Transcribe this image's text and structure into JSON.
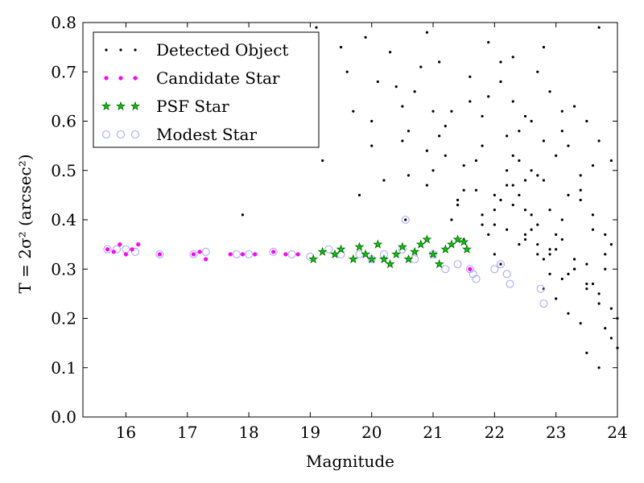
{
  "chart_data": {
    "type": "scatter",
    "title": "",
    "xlabel": "Magnitude",
    "ylabel": "T = 2σ² (arcsec²)",
    "xlim": [
      15.3,
      24
    ],
    "ylim": [
      0.0,
      0.8
    ],
    "xticks": [
      16,
      17,
      18,
      19,
      20,
      21,
      22,
      23,
      24
    ],
    "yticks": [
      0.0,
      0.1,
      0.2,
      0.3,
      0.4,
      0.5,
      0.6,
      0.7,
      0.8
    ],
    "grid": false,
    "legend_position": "top-left",
    "series": [
      {
        "name": "Detected Object",
        "marker": "dot",
        "color": "#000000",
        "x": [
          19.0,
          17.9,
          19.5,
          19.1,
          20.9,
          21.1,
          22.3,
          22.8,
          23.7,
          20.55,
          19.2,
          19.7,
          19.8,
          20.0,
          20.2,
          20.4,
          20.6,
          20.8,
          21.0,
          21.3,
          19.9,
          20.1,
          20.3,
          20.5,
          20.7,
          21.2,
          21.4,
          21.6,
          21.8,
          21.9,
          19.6,
          20.0,
          20.5,
          20.9,
          21.1,
          21.5,
          21.7,
          21.9,
          22.0,
          22.1,
          20.6,
          20.9,
          21.2,
          21.4,
          21.6,
          21.8,
          22.0,
          22.1,
          22.2,
          22.4,
          21.0,
          21.3,
          21.5,
          21.7,
          21.9,
          22.1,
          22.3,
          22.5,
          22.6,
          22.7,
          21.5,
          21.8,
          22.0,
          22.2,
          22.4,
          22.6,
          22.8,
          22.9,
          23.0,
          23.1,
          21.8,
          22.1,
          22.3,
          22.5,
          22.7,
          22.9,
          23.1,
          23.2,
          23.3,
          23.4,
          22.0,
          22.2,
          22.4,
          22.6,
          22.8,
          23.0,
          23.2,
          23.4,
          23.5,
          23.6,
          22.3,
          22.5,
          22.7,
          22.9,
          23.1,
          23.3,
          23.5,
          23.6,
          23.7,
          23.8,
          22.5,
          22.7,
          22.9,
          23.1,
          23.3,
          23.5,
          23.7,
          23.8,
          23.9,
          24.0,
          22.8,
          23.0,
          23.2,
          23.4,
          23.6,
          23.8,
          23.9,
          24.0,
          23.5,
          23.7,
          22.2,
          22.4,
          22.6,
          22.8,
          23.0,
          23.2,
          23.4,
          23.6,
          23.8,
          23.9,
          22.1,
          22.3,
          22.5,
          22.7,
          22.9,
          23.1,
          23.3,
          23.5,
          23.7,
          23.9
        ],
        "y": [
          0.58,
          0.41,
          0.75,
          0.79,
          0.78,
          0.72,
          0.73,
          0.75,
          0.79,
          0.4,
          0.52,
          0.62,
          0.45,
          0.55,
          0.48,
          0.67,
          0.58,
          0.71,
          0.5,
          0.62,
          0.77,
          0.68,
          0.74,
          0.56,
          0.66,
          0.53,
          0.44,
          0.69,
          0.61,
          0.76,
          0.7,
          0.6,
          0.63,
          0.47,
          0.57,
          0.51,
          0.46,
          0.65,
          0.42,
          0.72,
          0.49,
          0.54,
          0.59,
          0.43,
          0.64,
          0.55,
          0.39,
          0.68,
          0.47,
          0.58,
          0.62,
          0.4,
          0.46,
          0.52,
          0.37,
          0.44,
          0.53,
          0.48,
          0.6,
          0.35,
          0.36,
          0.41,
          0.33,
          0.5,
          0.45,
          0.38,
          0.56,
          0.42,
          0.34,
          0.62,
          0.39,
          0.31,
          0.43,
          0.36,
          0.49,
          0.33,
          0.4,
          0.55,
          0.3,
          0.46,
          0.45,
          0.38,
          0.35,
          0.41,
          0.32,
          0.37,
          0.29,
          0.44,
          0.31,
          0.51,
          0.47,
          0.42,
          0.39,
          0.34,
          0.36,
          0.3,
          0.27,
          0.38,
          0.25,
          0.33,
          0.37,
          0.33,
          0.29,
          0.28,
          0.32,
          0.26,
          0.23,
          0.3,
          0.22,
          0.2,
          0.26,
          0.24,
          0.21,
          0.19,
          0.27,
          0.18,
          0.16,
          0.14,
          0.13,
          0.1,
          0.57,
          0.52,
          0.5,
          0.48,
          0.53,
          0.45,
          0.49,
          0.41,
          0.37,
          0.35,
          0.68,
          0.64,
          0.61,
          0.7,
          0.66,
          0.58,
          0.63,
          0.6,
          0.56,
          0.52
        ]
      },
      {
        "name": "Candidate Star",
        "marker": "small-circle",
        "color": "#ff00ff",
        "x": [
          15.7,
          15.8,
          15.9,
          16.0,
          16.1,
          16.2,
          16.55,
          17.1,
          17.2,
          17.3,
          17.7,
          17.9,
          18.1,
          18.4,
          18.6,
          18.8,
          21.6
        ],
        "y": [
          0.34,
          0.335,
          0.35,
          0.33,
          0.34,
          0.35,
          0.33,
          0.33,
          0.335,
          0.32,
          0.33,
          0.33,
          0.33,
          0.335,
          0.33,
          0.33,
          0.3
        ]
      },
      {
        "name": "PSF Star",
        "marker": "star",
        "color": "#00aa00",
        "x": [
          19.05,
          19.2,
          19.4,
          19.5,
          19.7,
          19.8,
          19.9,
          20.0,
          20.1,
          20.2,
          20.3,
          20.4,
          20.5,
          20.6,
          20.7,
          20.8,
          20.9,
          21.0,
          21.1,
          21.2,
          21.3,
          21.4,
          21.5,
          21.55
        ],
        "y": [
          0.32,
          0.335,
          0.33,
          0.34,
          0.32,
          0.345,
          0.33,
          0.32,
          0.35,
          0.32,
          0.31,
          0.33,
          0.345,
          0.32,
          0.335,
          0.35,
          0.36,
          0.33,
          0.31,
          0.34,
          0.35,
          0.36,
          0.355,
          0.34
        ]
      },
      {
        "name": "Modest Star",
        "marker": "open-circle",
        "color": "#aaaaff",
        "x": [
          15.7,
          15.85,
          16.0,
          16.15,
          16.55,
          17.1,
          17.3,
          17.8,
          18.0,
          18.4,
          18.7,
          19.0,
          19.3,
          19.5,
          19.8,
          20.0,
          20.2,
          20.5,
          20.7,
          21.0,
          21.2,
          21.4,
          21.6,
          21.65,
          21.7,
          22.0,
          22.1,
          22.2,
          22.25,
          22.75,
          22.8,
          20.55
        ],
        "y": [
          0.34,
          0.34,
          0.34,
          0.335,
          0.33,
          0.33,
          0.335,
          0.33,
          0.33,
          0.335,
          0.33,
          0.325,
          0.34,
          0.33,
          0.33,
          0.32,
          0.33,
          0.34,
          0.32,
          0.33,
          0.3,
          0.31,
          0.3,
          0.29,
          0.28,
          0.3,
          0.31,
          0.29,
          0.27,
          0.26,
          0.23,
          0.4
        ]
      }
    ]
  }
}
